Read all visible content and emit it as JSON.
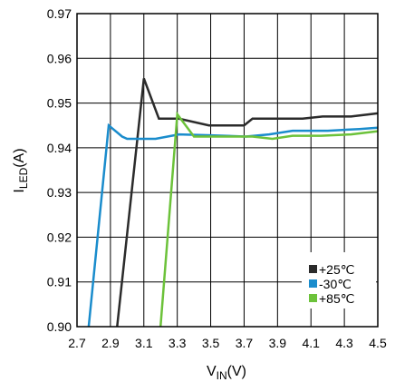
{
  "chart_data": {
    "type": "line",
    "title": "",
    "xlabel": {
      "main": "V",
      "sub": "IN",
      "unit": "(V)"
    },
    "ylabel": {
      "main": "I",
      "sub": "LED",
      "unit": "(A)"
    },
    "xlim": [
      2.7,
      4.5
    ],
    "ylim": [
      0.9,
      0.97
    ],
    "x_ticks": [
      "2.7",
      "2.9",
      "3.1",
      "3.3",
      "3.5",
      "3.7",
      "3.9",
      "4.1",
      "4.3",
      "4.5"
    ],
    "y_ticks": [
      "0.90",
      "0.91",
      "0.92",
      "0.93",
      "0.94",
      "0.95",
      "0.96",
      "0.97"
    ],
    "grid": true,
    "legend_position": "bottom-right",
    "series": [
      {
        "name": "+25℃",
        "color": "#2b2b2b",
        "x": [
          2.94,
          3.1,
          3.19,
          3.31,
          3.49,
          3.7,
          3.75,
          4.05,
          4.17,
          4.34,
          4.5
        ],
        "y": [
          0.9,
          0.9555,
          0.9465,
          0.9465,
          0.945,
          0.945,
          0.9465,
          0.9465,
          0.947,
          0.947,
          0.9477
        ]
      },
      {
        "name": "-30℃",
        "color": "#1a8ccc",
        "x": [
          2.77,
          2.89,
          2.97,
          3.0,
          3.17,
          3.31,
          3.5,
          3.71,
          3.85,
          3.99,
          4.2,
          4.39,
          4.5
        ],
        "y": [
          0.9,
          0.945,
          0.9425,
          0.942,
          0.942,
          0.943,
          0.9428,
          0.9425,
          0.943,
          0.9438,
          0.9438,
          0.9442,
          0.9445
        ]
      },
      {
        "name": "+85℃",
        "color": "#6cc23a",
        "x": [
          3.2,
          3.3,
          3.4,
          3.49,
          3.57,
          3.75,
          3.87,
          3.99,
          4.16,
          4.34,
          4.5
        ],
        "y": [
          0.9,
          0.9475,
          0.9425,
          0.9425,
          0.9425,
          0.9425,
          0.942,
          0.9427,
          0.9427,
          0.943,
          0.9437
        ]
      }
    ]
  }
}
